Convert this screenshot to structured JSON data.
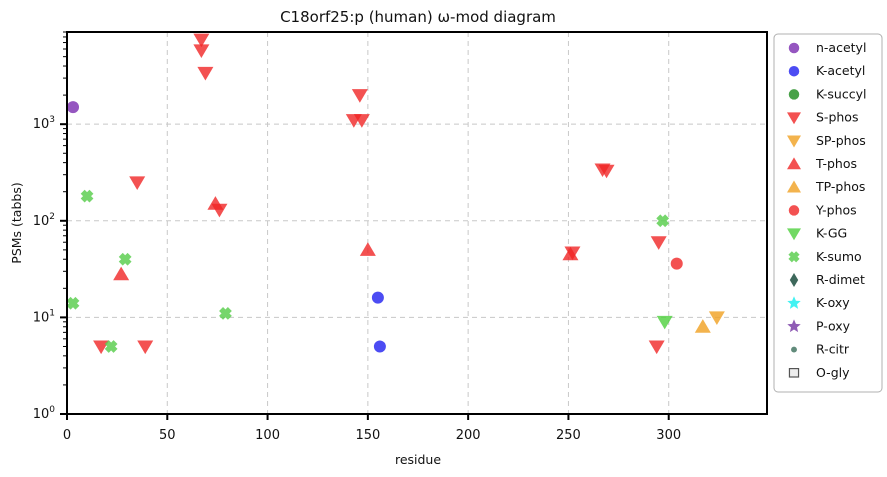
{
  "chart_data": {
    "type": "scatter",
    "title": "C18orf25:p (human) ω-mod diagram",
    "xlabel": "residue",
    "ylabel": "PSMs (tabbs)",
    "x_scale": "linear",
    "y_scale": "log",
    "xlim": [
      0,
      349
    ],
    "ylim": [
      1,
      9000
    ],
    "x_ticks": [
      "0",
      "50",
      "100",
      "150",
      "200",
      "250",
      "300"
    ],
    "y_ticks": [
      "10^0",
      "10^1",
      "10^2",
      "10^3"
    ],
    "grid": true,
    "legend_position": "right-outside",
    "series": [
      {
        "name": "n-acetyl",
        "marker": "circle",
        "color": "#7b2cb0",
        "points": [
          [
            3,
            1500
          ]
        ]
      },
      {
        "name": "K-acetyl",
        "marker": "circle",
        "color": "#1f1ff0",
        "points": [
          [
            155,
            16
          ],
          [
            156,
            5
          ]
        ]
      },
      {
        "name": "K-succyl",
        "marker": "circle",
        "color": "#1a8a1a",
        "points": []
      },
      {
        "name": "S-phos",
        "marker": "triangle-down",
        "color": "#f02525",
        "points": [
          [
            67,
            7500
          ],
          [
            67,
            5800
          ],
          [
            69,
            3400
          ],
          [
            146,
            2000
          ],
          [
            143,
            1100
          ],
          [
            147,
            1100
          ],
          [
            35,
            250
          ],
          [
            76,
            130
          ],
          [
            269,
            330
          ],
          [
            267,
            340
          ],
          [
            295,
            60
          ],
          [
            252,
            47
          ],
          [
            17,
            5
          ],
          [
            39,
            5
          ],
          [
            294,
            5
          ]
        ]
      },
      {
        "name": "SP-phos",
        "marker": "triangle-down",
        "color": "#f0a020",
        "points": [
          [
            324,
            10
          ]
        ]
      },
      {
        "name": "T-phos",
        "marker": "triangle-up",
        "color": "#f02525",
        "points": [
          [
            74,
            150
          ],
          [
            150,
            50
          ],
          [
            251,
            45
          ],
          [
            27,
            28
          ]
        ]
      },
      {
        "name": "TP-phos",
        "marker": "triangle-up",
        "color": "#f0a020",
        "points": [
          [
            317,
            8
          ]
        ]
      },
      {
        "name": "Y-phos",
        "marker": "circle",
        "color": "#f02525",
        "points": [
          [
            304,
            36
          ]
        ]
      },
      {
        "name": "K-GG",
        "marker": "triangle-down",
        "color": "#4ecf3c",
        "points": [
          [
            298,
            9
          ]
        ]
      },
      {
        "name": "K-sumo",
        "marker": "x",
        "color": "#5ecf52",
        "points": [
          [
            10,
            180
          ],
          [
            29,
            40
          ],
          [
            79,
            11
          ],
          [
            22,
            5
          ],
          [
            297,
            100
          ],
          [
            3,
            14
          ]
        ]
      },
      {
        "name": "R-dimet",
        "marker": "diamond",
        "color": "#1b4d3e",
        "points": []
      },
      {
        "name": "K-oxy",
        "marker": "star",
        "color": "#20f0f0",
        "points": []
      },
      {
        "name": "P-oxy",
        "marker": "star",
        "color": "#7b3fa8",
        "points": []
      },
      {
        "name": "R-citr",
        "marker": "circle-small",
        "color": "#3a6e5a",
        "points": []
      },
      {
        "name": "O-gly",
        "marker": "square-open",
        "color": "#555555",
        "points": []
      }
    ]
  }
}
